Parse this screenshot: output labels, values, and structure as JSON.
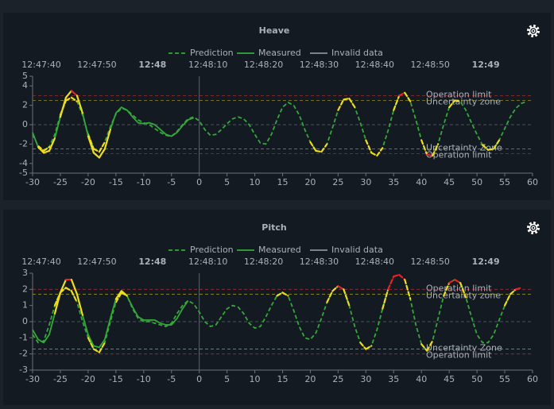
{
  "chart_data": [
    {
      "type": "line",
      "title": "Heave",
      "xlim": [
        -30,
        60
      ],
      "xticks": [
        -30,
        -25,
        -20,
        -15,
        -10,
        -5,
        0,
        5,
        10,
        15,
        20,
        25,
        30,
        35,
        40,
        45,
        50,
        55,
        60
      ],
      "ylim": [
        -5,
        5
      ],
      "yticks": [
        -5,
        -4,
        -2,
        0,
        2,
        4,
        5
      ],
      "x2ticks": [
        {
          "value": -30,
          "label": "12:47:40"
        },
        {
          "value": -20,
          "label": "12:47:50"
        },
        {
          "value": -10,
          "label": "12:48"
        },
        {
          "value": 0,
          "label": "12:48:10"
        },
        {
          "value": 10,
          "label": "12:48:20"
        },
        {
          "value": 20,
          "label": "12:48:30"
        },
        {
          "value": 30,
          "label": "12:48:40"
        },
        {
          "value": 40,
          "label": "12:48:50"
        },
        {
          "value": 50,
          "label": "12:49"
        }
      ],
      "grid": true,
      "now_line": 0,
      "series": [
        {
          "name": "Prediction",
          "color": "#34a83a",
          "dash": true,
          "x": [
            -30,
            -29,
            -28,
            -27,
            -26,
            -25,
            -24,
            -23,
            -22,
            -21,
            -20,
            -19,
            -18,
            -17,
            -16,
            -15,
            -14,
            -13,
            -12,
            -11,
            -10,
            -9,
            -8,
            -7,
            -6,
            -5,
            -4,
            -3,
            -2,
            -1,
            0,
            1,
            2,
            3,
            4,
            5,
            6,
            7,
            8,
            9,
            10,
            11,
            12,
            13,
            14,
            15,
            16,
            17,
            18,
            19,
            20,
            21,
            22,
            23,
            24,
            25,
            26,
            27,
            28,
            29,
            30,
            31,
            32,
            33,
            34,
            35,
            36,
            37,
            38,
            39,
            40,
            41,
            42,
            43,
            44,
            45,
            46,
            47,
            48,
            49,
            50,
            51,
            52,
            53,
            54,
            55,
            56,
            57,
            58,
            59
          ],
          "values": [
            -1.0,
            -2.2,
            -2.7,
            -2.3,
            -1.0,
            1.0,
            2.5,
            2.8,
            2.4,
            1.0,
            -1.0,
            -2.5,
            -2.8,
            -1.8,
            -0.2,
            1.1,
            1.7,
            1.5,
            1.0,
            0.5,
            0.2,
            0.0,
            -0.4,
            -0.8,
            -1.1,
            -1.2,
            -0.7,
            0.0,
            0.6,
            0.8,
            0.4,
            -0.5,
            -1.1,
            -1.0,
            -0.5,
            0.1,
            0.6,
            0.8,
            0.6,
            0.0,
            -1.0,
            -1.9,
            -2.0,
            -1.0,
            0.5,
            1.8,
            2.3,
            2.0,
            1.0,
            -0.5,
            -1.8,
            -2.7,
            -2.8,
            -2.0,
            -0.3,
            1.5,
            2.6,
            2.7,
            1.8,
            0.2,
            -1.6,
            -2.9,
            -3.2,
            -2.4,
            -0.6,
            1.5,
            3.0,
            3.3,
            2.4,
            0.5,
            -1.6,
            -3.1,
            -3.2,
            -2.0,
            0.0,
            1.8,
            2.5,
            2.4,
            1.5,
            0.2,
            -1.0,
            -2.1,
            -2.6,
            -2.5,
            -1.6,
            -0.4,
            0.8,
            1.7,
            2.2,
            2.4
          ]
        },
        {
          "name": "Measured",
          "color": "#34a83a",
          "x": [
            -30,
            -29,
            -28,
            -27,
            -26,
            -25,
            -24,
            -23,
            -22,
            -21,
            -20,
            -19,
            -18,
            -17,
            -16,
            -15,
            -14,
            -13,
            -12,
            -11,
            -10,
            -9,
            -8,
            -7,
            -6,
            -5,
            -4,
            -3,
            -2,
            -1
          ],
          "values": [
            -0.8,
            -2.3,
            -2.9,
            -2.7,
            -1.4,
            0.8,
            2.8,
            3.5,
            3.0,
            1.2,
            -1.2,
            -2.9,
            -3.4,
            -2.5,
            -0.5,
            1.2,
            1.8,
            1.5,
            0.8,
            0.2,
            0.1,
            0.2,
            0.0,
            -0.5,
            -1.0,
            -1.2,
            -0.8,
            -0.1,
            0.5,
            0.7
          ]
        },
        {
          "name": "Invalid data",
          "color": "#8b929a"
        }
      ],
      "reference_lines": [
        {
          "label": "Operation limit",
          "kind": "limit",
          "value": 3,
          "color": "#c4303a"
        },
        {
          "label": "Uncertainty zone",
          "kind": "uncertainty",
          "value": 2.5,
          "color": "#b8ac1c"
        },
        {
          "label": "Uncertainty Zone",
          "kind": "uncertainty",
          "value": -2.5,
          "color": "#b8ac1c"
        },
        {
          "label": "Operation limit",
          "kind": "limit",
          "value": -3,
          "color": "#c4303a"
        }
      ],
      "zone_colors": {
        "uncertainty": "#f0dc1e",
        "limit": "#e8202a"
      }
    },
    {
      "type": "line",
      "title": "Pitch",
      "xlim": [
        -30,
        60
      ],
      "xticks": [
        -30,
        -25,
        -20,
        -15,
        -10,
        -5,
        0,
        5,
        10,
        15,
        20,
        25,
        30,
        35,
        40,
        45,
        50,
        55,
        60
      ],
      "ylim": [
        -3,
        3
      ],
      "yticks": [
        -3,
        -2,
        -1,
        0,
        1,
        2,
        3
      ],
      "x2ticks": [
        {
          "value": -30,
          "label": "12:47:40"
        },
        {
          "value": -20,
          "label": "12:47:50"
        },
        {
          "value": -10,
          "label": "12:48"
        },
        {
          "value": 0,
          "label": "12:48:10"
        },
        {
          "value": 10,
          "label": "12:48:20"
        },
        {
          "value": 20,
          "label": "12:48:30"
        },
        {
          "value": 30,
          "label": "12:48:40"
        },
        {
          "value": 40,
          "label": "12:48:50"
        },
        {
          "value": 50,
          "label": "12:49"
        }
      ],
      "grid": true,
      "now_line": 0,
      "series": [
        {
          "name": "Prediction",
          "color": "#34a83a",
          "dash": true,
          "x": [
            -30,
            -29,
            -28,
            -27,
            -26,
            -25,
            -24,
            -23,
            -22,
            -21,
            -20,
            -19,
            -18,
            -17,
            -16,
            -15,
            -14,
            -13,
            -12,
            -11,
            -10,
            -9,
            -8,
            -7,
            -6,
            -5,
            -4,
            -3,
            -2,
            -1,
            0,
            1,
            2,
            3,
            4,
            5,
            6,
            7,
            8,
            9,
            10,
            11,
            12,
            13,
            14,
            15,
            16,
            17,
            18,
            19,
            20,
            21,
            22,
            23,
            24,
            25,
            26,
            27,
            28,
            29,
            30,
            31,
            32,
            33,
            34,
            35,
            36,
            37,
            38,
            39,
            40,
            41,
            42,
            43,
            44,
            45,
            46,
            47,
            48,
            49,
            50,
            51,
            52,
            53,
            54,
            55,
            56,
            57,
            58
          ],
          "values": [
            -0.8,
            -1.3,
            -1.2,
            -0.2,
            1.0,
            1.8,
            2.1,
            1.9,
            1.2,
            0.0,
            -1.0,
            -1.7,
            -1.9,
            -1.3,
            0.0,
            1.2,
            1.8,
            1.6,
            0.8,
            0.2,
            0.0,
            0.0,
            -0.1,
            -0.2,
            -0.3,
            -0.1,
            0.5,
            1.0,
            1.3,
            1.1,
            0.6,
            0.0,
            -0.3,
            -0.2,
            0.3,
            0.8,
            1.0,
            0.9,
            0.5,
            -0.1,
            -0.4,
            -0.3,
            0.3,
            1.0,
            1.6,
            1.8,
            1.6,
            0.7,
            -0.3,
            -1.0,
            -1.1,
            -0.7,
            0.2,
            1.2,
            1.9,
            2.2,
            2.0,
            1.0,
            -0.3,
            -1.3,
            -1.7,
            -1.5,
            -0.5,
            0.8,
            2.0,
            2.8,
            2.9,
            2.6,
            1.4,
            -0.2,
            -1.4,
            -1.8,
            -1.2,
            0.2,
            1.6,
            2.4,
            2.6,
            2.4,
            1.5,
            0.3,
            -0.8,
            -1.3,
            -1.3,
            -0.8,
            0.1,
            1.0,
            1.7,
            2.0,
            2.1
          ]
        },
        {
          "name": "Measured",
          "color": "#34a83a",
          "x": [
            -30,
            -29,
            -28,
            -27,
            -26,
            -25,
            -24,
            -23,
            -22,
            -21,
            -20,
            -19,
            -18,
            -17,
            -16,
            -15,
            -14,
            -13,
            -12,
            -11,
            -10,
            -9,
            -8,
            -7,
            -6,
            -5,
            -4,
            -3,
            -2
          ],
          "values": [
            -0.5,
            -1.1,
            -1.3,
            -0.8,
            0.5,
            1.8,
            2.6,
            2.6,
            1.7,
            0.4,
            -0.8,
            -1.5,
            -1.6,
            -1.1,
            0.2,
            1.4,
            1.9,
            1.6,
            0.9,
            0.3,
            0.1,
            0.1,
            0.1,
            -0.1,
            -0.2,
            -0.2,
            0.2,
            0.8,
            1.3
          ]
        },
        {
          "name": "Invalid data",
          "color": "#8b929a"
        }
      ],
      "reference_lines": [
        {
          "label": "Operation limit",
          "kind": "limit",
          "value": 2,
          "color": "#c4303a"
        },
        {
          "label": "Uncertainty zone",
          "kind": "uncertainty",
          "value": 1.7,
          "color": "#b8ac1c"
        },
        {
          "label": "Uncertainty Zone",
          "kind": "uncertainty",
          "value": -1.7,
          "color": "#b8ac1c"
        },
        {
          "label": "Operation limit",
          "kind": "limit",
          "value": -2,
          "color": "#c4303a"
        }
      ],
      "zone_colors": {
        "uncertainty": "#f0dc1e",
        "limit": "#e8202a"
      }
    }
  ]
}
